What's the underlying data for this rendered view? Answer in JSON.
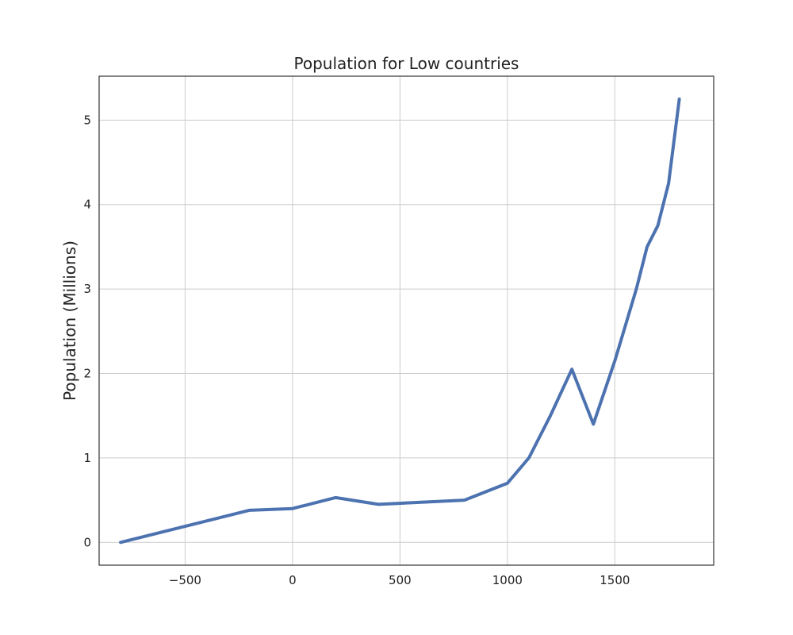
{
  "chart_data": {
    "type": "line",
    "title": "Population for Low countries",
    "xlabel": "",
    "ylabel": "Population (Millions)",
    "xlim": [
      -900,
      1960
    ],
    "ylim": [
      -0.27,
      5.52
    ],
    "xticks": [
      -500,
      0,
      500,
      1000,
      1500
    ],
    "xtick_labels": [
      "−500",
      "0",
      "500",
      "1000",
      "1500"
    ],
    "yticks": [
      0,
      1,
      2,
      3,
      4,
      5
    ],
    "ytick_labels": [
      "0",
      "1",
      "2",
      "3",
      "4",
      "5"
    ],
    "grid": true,
    "series": [
      {
        "color": "#4c72b0",
        "x": [
          -800,
          -200,
          0,
          200,
          400,
          800,
          1000,
          1100,
          1200,
          1300,
          1400,
          1500,
          1600,
          1650,
          1700,
          1750,
          1800
        ],
        "y": [
          0,
          0.38,
          0.4,
          0.53,
          0.45,
          0.5,
          0.7,
          1.0,
          1.5,
          2.05,
          1.4,
          2.15,
          3.0,
          3.5,
          3.75,
          4.25,
          5.25
        ]
      }
    ]
  }
}
